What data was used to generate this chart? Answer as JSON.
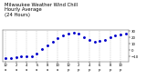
{
  "title": "Milwaukee Weather Wind Chill\nHourly Average\n(24 Hours)",
  "title_fontsize": 3.8,
  "x_values": [
    0,
    1,
    2,
    3,
    4,
    5,
    6,
    7,
    8,
    9,
    10,
    11,
    12,
    13,
    14,
    15,
    16,
    17,
    18,
    19,
    20,
    21,
    22,
    23
  ],
  "y_values": [
    -12,
    -13,
    -11,
    -10,
    -10,
    -9,
    -5,
    2,
    8,
    14,
    19,
    24,
    27,
    28,
    26,
    21,
    17,
    14,
    15,
    16,
    21,
    23,
    25,
    26
  ],
  "dot_color": "#0000cc",
  "dot_size": 1.2,
  "background_color": "#ffffff",
  "grid_color": "#aaaaaa",
  "ylim": [
    -18,
    32
  ],
  "xlim": [
    -0.5,
    23.5
  ],
  "y_ticks": [
    -10,
    0,
    10,
    20,
    30
  ],
  "x_ticks": [
    0,
    2,
    4,
    6,
    8,
    10,
    12,
    14,
    16,
    18,
    20,
    22
  ],
  "x_tick_labels": [
    "12",
    "2",
    "4",
    "6",
    "8",
    "10",
    "12",
    "2",
    "4",
    "6",
    "8",
    "10"
  ],
  "x_sublabels": [
    "a",
    "a",
    "a",
    "a",
    "a",
    "a",
    "p",
    "p",
    "p",
    "p",
    "p",
    "p"
  ],
  "tick_fontsize": 2.8,
  "vgrid_positions": [
    0,
    2,
    4,
    6,
    8,
    10,
    12,
    14,
    16,
    18,
    20,
    22
  ]
}
